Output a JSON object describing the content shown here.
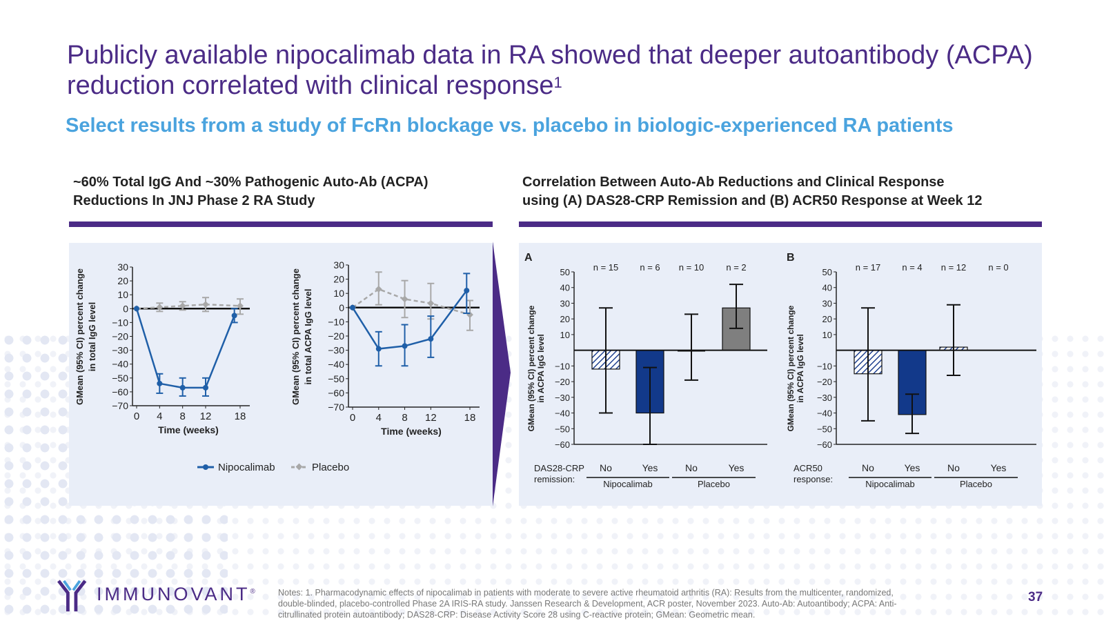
{
  "title": "Publicly available nipocalimab data in RA showed that deeper autoantibody (ACPA) reduction correlated with clinical response",
  "title_sup": "1",
  "subtitle": "Select results from a study of FcRn blockage vs. placebo in biologic-experienced RA patients",
  "left_heading": {
    "line1": "~60% Total IgG And ~30% Pathogenic Auto-Ab (ACPA)",
    "line2": "Reductions In JNJ Phase 2 RA Study"
  },
  "right_heading": {
    "line1": "Correlation Between Auto-Ab Reductions and Clinical Response",
    "line2": "using (A) DAS28-CRP Remission and (B) ACR50 Response at Week 12"
  },
  "colors": {
    "purple": "#4b2b86",
    "light_blue": "#4aa3de",
    "nipo_blue": "#1f5fa8",
    "placebo_gray": "#a8a8a8",
    "bar_blue": "#12398a",
    "bar_gray": "#7f7f7f",
    "panel_bg": "#e9eef8"
  },
  "legend": {
    "nipocalimab": "Nipocalimab",
    "placebo": "Placebo"
  },
  "chart_data": [
    {
      "type": "line",
      "ylabel_line1": "GMean (95% CI) percent change",
      "ylabel_line2": "in total IgG level",
      "xlabel": "Time (weeks)",
      "x": [
        0,
        4,
        8,
        12,
        18
      ],
      "xlim": [
        0,
        18
      ],
      "ylim": [
        -70,
        30
      ],
      "yticks": [
        30,
        20,
        10,
        0,
        -10,
        -20,
        -30,
        -40,
        -50,
        -60,
        -70
      ],
      "series": [
        {
          "name": "Nipocalimab",
          "points": [
            {
              "x": 0,
              "y": 0
            },
            {
              "x": 4,
              "y": -54,
              "lo": -61,
              "hi": -47
            },
            {
              "x": 8,
              "y": -57,
              "lo": -63,
              "hi": -50
            },
            {
              "x": 12,
              "y": -57,
              "lo": -63,
              "hi": -50
            },
            {
              "x": 17,
              "y": -5,
              "lo": -10,
              "hi": 0
            }
          ]
        },
        {
          "name": "Placebo",
          "points": [
            {
              "x": 0,
              "y": 0
            },
            {
              "x": 4,
              "y": 1,
              "lo": -2,
              "hi": 4
            },
            {
              "x": 8,
              "y": 2,
              "lo": -1,
              "hi": 5
            },
            {
              "x": 12,
              "y": 3,
              "lo": -2,
              "hi": 8
            },
            {
              "x": 18,
              "y": 2,
              "lo": -4,
              "hi": 7
            }
          ]
        }
      ]
    },
    {
      "type": "line",
      "ylabel_line1": "GMean (95% CI) percent change",
      "ylabel_line2": "in total ACPA IgG level",
      "xlabel": "Time (weeks)",
      "x": [
        0,
        4,
        8,
        12,
        18
      ],
      "xlim": [
        0,
        18
      ],
      "ylim": [
        -70,
        30
      ],
      "yticks": [
        30,
        20,
        10,
        0,
        -10,
        -20,
        -30,
        -40,
        -50,
        -60,
        -70
      ],
      "series": [
        {
          "name": "Nipocalimab",
          "points": [
            {
              "x": 0,
              "y": 0
            },
            {
              "x": 4,
              "y": -29,
              "lo": -41,
              "hi": -17
            },
            {
              "x": 8,
              "y": -27,
              "lo": -41,
              "hi": -12
            },
            {
              "x": 12,
              "y": -22,
              "lo": -35,
              "hi": -6
            },
            {
              "x": 17.5,
              "y": 12,
              "lo": -4,
              "hi": 24
            }
          ]
        },
        {
          "name": "Placebo",
          "points": [
            {
              "x": 0,
              "y": 0
            },
            {
              "x": 4,
              "y": 13,
              "lo": 2,
              "hi": 25
            },
            {
              "x": 8,
              "y": 6,
              "lo": -7,
              "hi": 19
            },
            {
              "x": 12,
              "y": 3,
              "lo": -8,
              "hi": 17
            },
            {
              "x": 18,
              "y": -5,
              "lo": -16,
              "hi": 5
            }
          ]
        }
      ]
    },
    {
      "type": "bar",
      "panel_label": "A",
      "ylabel_line1": "GMean (95% CI) percent change",
      "ylabel_line2": "in ACPA IgG level",
      "ylim": [
        -60,
        50
      ],
      "yticks": [
        50,
        40,
        30,
        20,
        10,
        -10,
        -20,
        -30,
        -40,
        -50,
        -60
      ],
      "response_label_line1": "DAS28-CRP",
      "response_label_line2": "remission:",
      "categories": [
        "No",
        "Yes",
        "No",
        "Yes"
      ],
      "groups": [
        "Nipocalimab",
        "Placebo"
      ],
      "n_labels": [
        "n = 15",
        "n = 6",
        "n = 10",
        "n = 2"
      ],
      "values": [
        -12,
        -40,
        -0.5,
        27
      ],
      "ci_low": [
        -40,
        -60,
        -19,
        14
      ],
      "ci_high": [
        27,
        -11,
        23,
        42
      ],
      "styles": [
        "hatch",
        "blue",
        "none",
        "gray"
      ]
    },
    {
      "type": "bar",
      "panel_label": "B",
      "ylabel_line1": "GMean (95% CI) percent change",
      "ylabel_line2": "in ACPA IgG level",
      "ylim": [
        -60,
        50
      ],
      "yticks": [
        50,
        40,
        30,
        20,
        10,
        -10,
        -20,
        -30,
        -40,
        -50,
        -60
      ],
      "response_label_line1": "ACR50",
      "response_label_line2": "response:",
      "categories": [
        "No",
        "Yes",
        "No",
        "Yes"
      ],
      "groups": [
        "Nipocalimab",
        "Placebo"
      ],
      "n_labels": [
        "n = 17",
        "n = 4",
        "n = 12",
        "n = 0"
      ],
      "values": [
        -15,
        -41,
        2,
        null
      ],
      "ci_low": [
        -45,
        -53,
        -16,
        null
      ],
      "ci_high": [
        27,
        -28,
        29,
        null
      ],
      "styles": [
        "hatch",
        "blue",
        "hatch",
        "none"
      ]
    }
  ],
  "notes": "Notes: 1. Pharmacodynamic effects of nipocalimab in patients with moderate to severe active rheumatoid arthritis (RA): Results from the multicenter, randomized, double-blinded, placebo-controlled Phase 2A IRIS-RA study. Janssen Research & Development, ACR poster, November 2023. Auto-Ab: Autoantibody; ACPA: Anti-citrullinated protein autoantibody; DAS28-CRP: Disease Activity Score 28 using C-reactive protein; GMean: Geometric mean.",
  "page_number": "37",
  "logo": {
    "text": "IMMUNOVANT",
    "mark": "®"
  }
}
